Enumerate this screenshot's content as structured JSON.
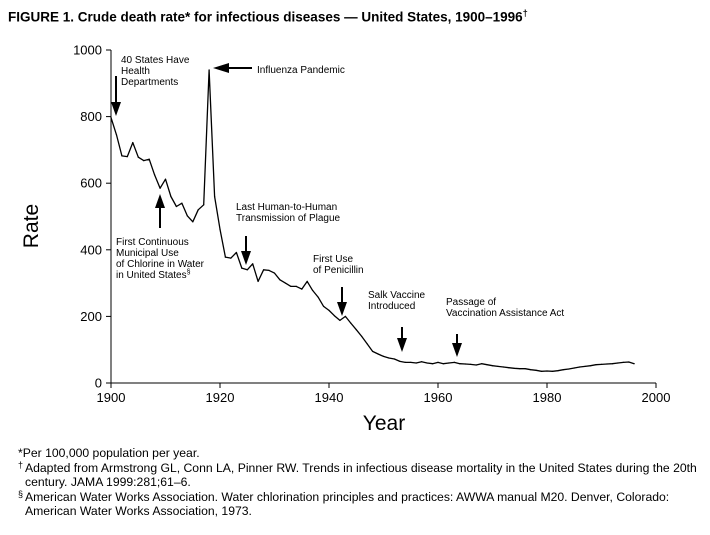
{
  "title": {
    "text": "FIGURE 1. Crude death rate* for infectious diseases — United States, 1900–1996",
    "mark": "†"
  },
  "chart_data": {
    "type": "line",
    "title": "FIGURE 1. Crude death rate* for infectious diseases — United States, 1900–1996",
    "xlabel": "Year",
    "ylabel": "Rate",
    "xlim": [
      1900,
      2000
    ],
    "ylim": [
      0,
      1000
    ],
    "xticks": [
      1900,
      1920,
      1940,
      1960,
      1980,
      2000
    ],
    "yticks": [
      0,
      200,
      400,
      600,
      800,
      1000
    ],
    "grid": false,
    "series": [
      {
        "name": "Crude death rate per 100,000",
        "color": "#000000",
        "points": [
          [
            1900,
            797
          ],
          [
            1901,
            745
          ],
          [
            1902,
            682
          ],
          [
            1903,
            680
          ],
          [
            1904,
            722
          ],
          [
            1905,
            678
          ],
          [
            1906,
            668
          ],
          [
            1907,
            672
          ],
          [
            1908,
            625
          ],
          [
            1909,
            585
          ],
          [
            1910,
            612
          ],
          [
            1911,
            560
          ],
          [
            1912,
            530
          ],
          [
            1913,
            540
          ],
          [
            1914,
            502
          ],
          [
            1915,
            484
          ],
          [
            1916,
            520
          ],
          [
            1917,
            535
          ],
          [
            1918,
            940
          ],
          [
            1919,
            560
          ],
          [
            1920,
            462
          ],
          [
            1921,
            378
          ],
          [
            1922,
            375
          ],
          [
            1923,
            392
          ],
          [
            1924,
            345
          ],
          [
            1925,
            340
          ],
          [
            1926,
            358
          ],
          [
            1927,
            305
          ],
          [
            1928,
            340
          ],
          [
            1929,
            338
          ],
          [
            1930,
            330
          ],
          [
            1931,
            310
          ],
          [
            1932,
            300
          ],
          [
            1933,
            290
          ],
          [
            1934,
            290
          ],
          [
            1935,
            282
          ],
          [
            1936,
            305
          ],
          [
            1937,
            278
          ],
          [
            1938,
            258
          ],
          [
            1939,
            230
          ],
          [
            1940,
            218
          ],
          [
            1941,
            202
          ],
          [
            1942,
            188
          ],
          [
            1943,
            200
          ],
          [
            1944,
            180
          ],
          [
            1945,
            160
          ],
          [
            1946,
            140
          ],
          [
            1947,
            118
          ],
          [
            1948,
            95
          ],
          [
            1949,
            87
          ],
          [
            1950,
            80
          ],
          [
            1951,
            75
          ],
          [
            1952,
            72
          ],
          [
            1953,
            65
          ],
          [
            1954,
            62
          ],
          [
            1955,
            62
          ],
          [
            1956,
            60
          ],
          [
            1957,
            64
          ],
          [
            1958,
            60
          ],
          [
            1959,
            58
          ],
          [
            1960,
            62
          ],
          [
            1961,
            58
          ],
          [
            1962,
            60
          ],
          [
            1963,
            62
          ],
          [
            1964,
            58
          ],
          [
            1965,
            57
          ],
          [
            1966,
            56
          ],
          [
            1967,
            54
          ],
          [
            1968,
            58
          ],
          [
            1969,
            55
          ],
          [
            1970,
            52
          ],
          [
            1971,
            50
          ],
          [
            1972,
            48
          ],
          [
            1973,
            46
          ],
          [
            1974,
            44
          ],
          [
            1975,
            43
          ],
          [
            1976,
            43
          ],
          [
            1977,
            40
          ],
          [
            1978,
            38
          ],
          [
            1979,
            35
          ],
          [
            1980,
            36
          ],
          [
            1981,
            35
          ],
          [
            1982,
            37
          ],
          [
            1983,
            40
          ],
          [
            1984,
            42
          ],
          [
            1985,
            45
          ],
          [
            1986,
            48
          ],
          [
            1987,
            50
          ],
          [
            1988,
            52
          ],
          [
            1989,
            55
          ],
          [
            1990,
            56
          ],
          [
            1991,
            57
          ],
          [
            1992,
            58
          ],
          [
            1993,
            60
          ],
          [
            1994,
            62
          ],
          [
            1995,
            63
          ],
          [
            1996,
            58
          ]
        ]
      }
    ],
    "annotations": [
      {
        "id": "health-departments",
        "lines": [
          "40 States Have",
          "Health",
          "Departments"
        ],
        "year": 1900.5,
        "value": 790,
        "arrow": "down"
      },
      {
        "id": "influenza",
        "lines": [
          "Influenza Pandemic"
        ],
        "year": 1918.1,
        "value": 940,
        "arrow": "left"
      },
      {
        "id": "chlorine",
        "lines": [
          "First Continuous",
          "Municipal Use",
          "of Chlorine in Water",
          "in United States"
        ],
        "mark": "§",
        "year": 1908.7,
        "value": 590,
        "arrow": "up"
      },
      {
        "id": "plague",
        "lines": [
          "Last Human-to-Human",
          "Transmission of Plague"
        ],
        "year": 1924.5,
        "value": 345,
        "arrow": "down"
      },
      {
        "id": "penicillin",
        "lines": [
          "First Use",
          "of Penicillin"
        ],
        "year": 1942,
        "value": 188,
        "arrow": "down"
      },
      {
        "id": "salk",
        "lines": [
          "Salk Vaccine",
          "Introduced"
        ],
        "year": 1953.5,
        "value": 65,
        "arrow": "down"
      },
      {
        "id": "vaccination-act",
        "lines": [
          "Passage of",
          "Vaccination Assistance Act"
        ],
        "year": 1963.5,
        "value": 62,
        "arrow": "down"
      }
    ]
  },
  "footnotes": [
    {
      "mark": "",
      "text": "*Per 100,000 population per year."
    },
    {
      "mark": "†",
      "text": "Adapted from Armstrong GL, Conn LA, Pinner RW. Trends in infectious disease mortality in the United States during the 20th century. JAMA 1999:281;61–6."
    },
    {
      "mark": "§",
      "text": "American Water Works Association. Water chlorination principles and practices: AWWA manual M20. Denver, Colorado: American Water Works Association, 1973."
    }
  ]
}
